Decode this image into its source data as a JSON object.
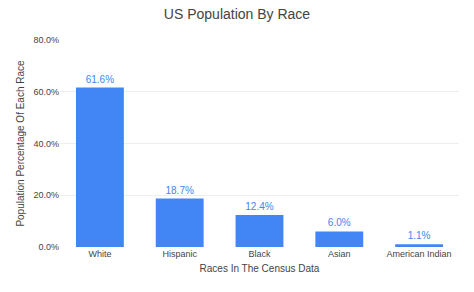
{
  "chart_data": {
    "type": "bar",
    "title": "US Population By Race",
    "xlabel": "Races In The Census Data",
    "ylabel": "Population Percentage Of Each Race",
    "categories": [
      "White",
      "Hispanic",
      "Black",
      "Asian",
      "American Indian"
    ],
    "values": [
      61.6,
      18.7,
      12.4,
      6.0,
      1.1
    ],
    "value_labels": [
      "61.6%",
      "18.7%",
      "12.4%",
      "6.0%",
      "1.1%"
    ],
    "data_labels": true,
    "color": "#4285F4",
    "ylim": [
      0,
      80
    ],
    "yticks": [
      {
        "value": 0,
        "label": "0.0%"
      },
      {
        "value": 20,
        "label": "20.0%"
      },
      {
        "value": 40,
        "label": "40.0%"
      },
      {
        "value": 60,
        "label": "60.0%"
      },
      {
        "value": 80,
        "label": "80.0%"
      }
    ],
    "grid": true
  }
}
